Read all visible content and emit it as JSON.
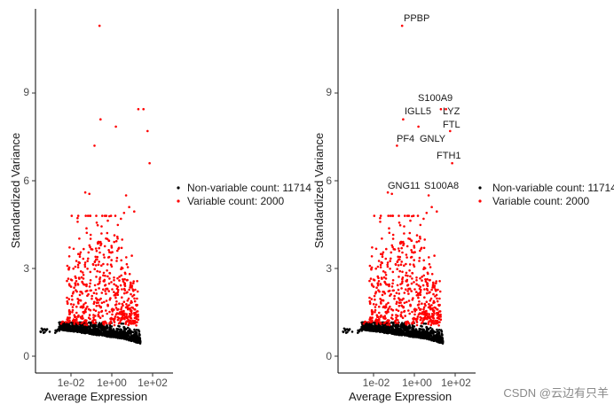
{
  "chart_data": [
    {
      "type": "scatter",
      "xlabel": "Average Expression",
      "ylabel": "Standardized Variance",
      "x_scale": "log10",
      "xlim_log10": [
        -3.8,
        2.9
      ],
      "ylim": [
        -0.6,
        11.8
      ],
      "x_ticks": [
        {
          "value_log10": -2,
          "label": "1e-02"
        },
        {
          "value_log10": 0,
          "label": "1e+00"
        },
        {
          "value_log10": 2,
          "label": "1e+02"
        }
      ],
      "y_ticks": [
        {
          "value": 0,
          "label": "0"
        },
        {
          "value": 3,
          "label": "3"
        },
        {
          "value": 6,
          "label": "6"
        },
        {
          "value": 9,
          "label": "9"
        }
      ],
      "legend": {
        "placement": "right",
        "entries": [
          {
            "label": "Non-variable count: 11714",
            "color": "#000000"
          },
          {
            "label": "Variable count: 2000",
            "color": "#ff0000"
          }
        ]
      },
      "highlighted_points": [
        {
          "gene": "PPBP",
          "log10_mean": -0.6,
          "variance": 11.3
        },
        {
          "gene": "S100A9",
          "log10_mean": 1.3,
          "variance": 8.45
        },
        {
          "gene": "LYZ",
          "log10_mean": 1.55,
          "variance": 8.45
        },
        {
          "gene": "IGLL5",
          "log10_mean": -0.55,
          "variance": 8.1
        },
        {
          "gene": "FTL",
          "log10_mean": 1.75,
          "variance": 7.7
        },
        {
          "gene": "GNLY",
          "log10_mean": 0.2,
          "variance": 7.85
        },
        {
          "gene": "PF4",
          "log10_mean": -0.85,
          "variance": 7.2
        },
        {
          "gene": "FTH1",
          "log10_mean": 1.85,
          "variance": 6.6
        },
        {
          "gene": "GNG11",
          "log10_mean": -1.3,
          "variance": 5.6
        },
        {
          "gene": "S100A8",
          "log10_mean": 0.7,
          "variance": 5.5
        },
        {
          "gene": "",
          "log10_mean": -1.1,
          "variance": 5.55
        },
        {
          "gene": "",
          "log10_mean": 0.85,
          "variance": 5.1
        },
        {
          "gene": "",
          "log10_mean": 1.1,
          "variance": 4.95
        },
        {
          "gene": "",
          "log10_mean": 0.45,
          "variance": 4.7
        },
        {
          "gene": "",
          "log10_mean": 0.6,
          "variance": 4.9
        }
      ]
    },
    {
      "type": "scatter",
      "xlabel": "Average Expression",
      "ylabel": "Standardized Variance",
      "x_scale": "log10",
      "xlim_log10": [
        -3.8,
        2.9
      ],
      "ylim": [
        -0.6,
        11.8
      ],
      "x_ticks": [
        {
          "value_log10": -2,
          "label": "1e-02"
        },
        {
          "value_log10": 0,
          "label": "1e+00"
        },
        {
          "value_log10": 2,
          "label": "1e+02"
        }
      ],
      "y_ticks": [
        {
          "value": 0,
          "label": "0"
        },
        {
          "value": 3,
          "label": "3"
        },
        {
          "value": 6,
          "label": "6"
        },
        {
          "value": 9,
          "label": "9"
        }
      ],
      "legend": {
        "placement": "right",
        "entries": [
          {
            "label": "Non-variable count: 11714",
            "color": "#000000"
          },
          {
            "label": "Variable count: 2000",
            "color": "#ff0000"
          }
        ]
      },
      "gene_labels": [
        "PPBP",
        "S100A9",
        "LYZ",
        "IGLL5",
        "FTL",
        "PF4",
        "GNLY",
        "FTH1",
        "GNG11",
        "S100A8"
      ]
    }
  ],
  "watermark": "CSDN @云边有只羊"
}
